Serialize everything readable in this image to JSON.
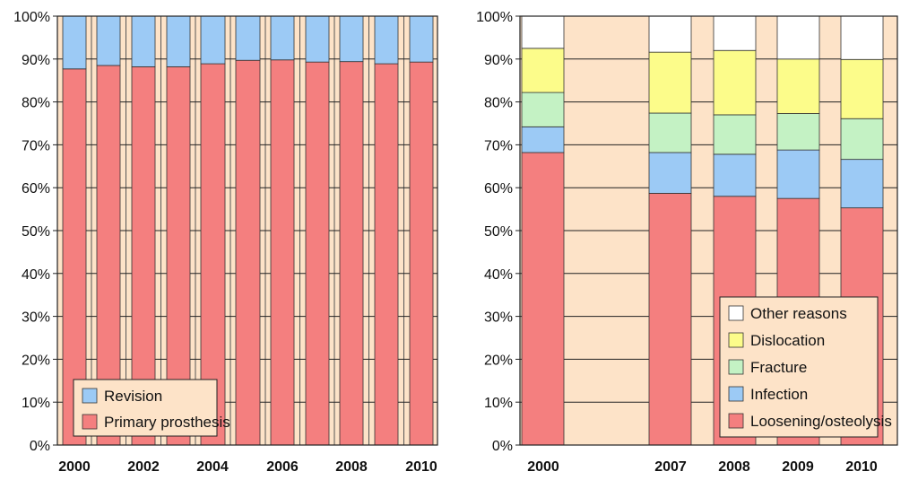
{
  "chart_data": [
    {
      "type": "bar",
      "stacked": true,
      "title": "",
      "xlabel": "",
      "ylabel": "",
      "ylim": [
        0,
        100
      ],
      "y_ticks": [
        "0%",
        "10%",
        "20%",
        "30%",
        "40%",
        "50%",
        "60%",
        "70%",
        "80%",
        "90%",
        "100%"
      ],
      "categories": [
        "2000",
        "2001",
        "2002",
        "2003",
        "2004",
        "2005",
        "2006",
        "2007",
        "2008",
        "2009",
        "2010"
      ],
      "x_tick_labels": [
        "2000",
        "2002",
        "2004",
        "2006",
        "2008",
        "2010"
      ],
      "background": "#fde3c8",
      "legend_position": "bottom-left",
      "series": [
        {
          "name": "Primary prosthesis",
          "color": "#f47f7f",
          "values": [
            87.7,
            88.5,
            88.2,
            88.2,
            88.9,
            89.7,
            89.8,
            89.3,
            89.4,
            88.9,
            89.3
          ]
        },
        {
          "name": "Revision",
          "color": "#9ccaf5",
          "values": [
            12.3,
            11.5,
            11.8,
            11.8,
            11.1,
            10.3,
            10.2,
            10.7,
            10.6,
            11.1,
            10.7
          ]
        }
      ],
      "legend": [
        "Revision",
        "Primary prosthesis"
      ]
    },
    {
      "type": "bar",
      "stacked": true,
      "title": "",
      "xlabel": "",
      "ylabel": "",
      "ylim": [
        0,
        100
      ],
      "y_ticks": [
        "0%",
        "10%",
        "20%",
        "30%",
        "40%",
        "50%",
        "60%",
        "70%",
        "80%",
        "90%",
        "100%"
      ],
      "categories": [
        "2000",
        "2007",
        "2008",
        "2009",
        "2010"
      ],
      "x_tick_labels": [
        "2000",
        "2007",
        "2008",
        "2009",
        "2010"
      ],
      "background": "#fde3c8",
      "legend_position": "bottom-right",
      "series": [
        {
          "name": "Loosening/osteolysis",
          "color": "#f47f7f",
          "values": [
            68.2,
            58.7,
            58.0,
            57.5,
            55.3
          ]
        },
        {
          "name": "Infection",
          "color": "#9ccaf5",
          "values": [
            6.0,
            9.5,
            9.8,
            11.3,
            11.3
          ]
        },
        {
          "name": "Fracture",
          "color": "#c4f2c4",
          "values": [
            8.0,
            9.2,
            9.2,
            8.5,
            9.5
          ]
        },
        {
          "name": "Dislocation",
          "color": "#fcfc8a",
          "values": [
            10.3,
            14.2,
            15.0,
            12.7,
            13.8
          ]
        },
        {
          "name": "Other reasons",
          "color": "#ffffff",
          "values": [
            7.5,
            8.4,
            8.0,
            10.0,
            10.1
          ]
        }
      ],
      "legend": [
        "Other reasons",
        "Dislocation",
        "Fracture",
        "Infection",
        "Loosening/osteolysis"
      ]
    }
  ]
}
